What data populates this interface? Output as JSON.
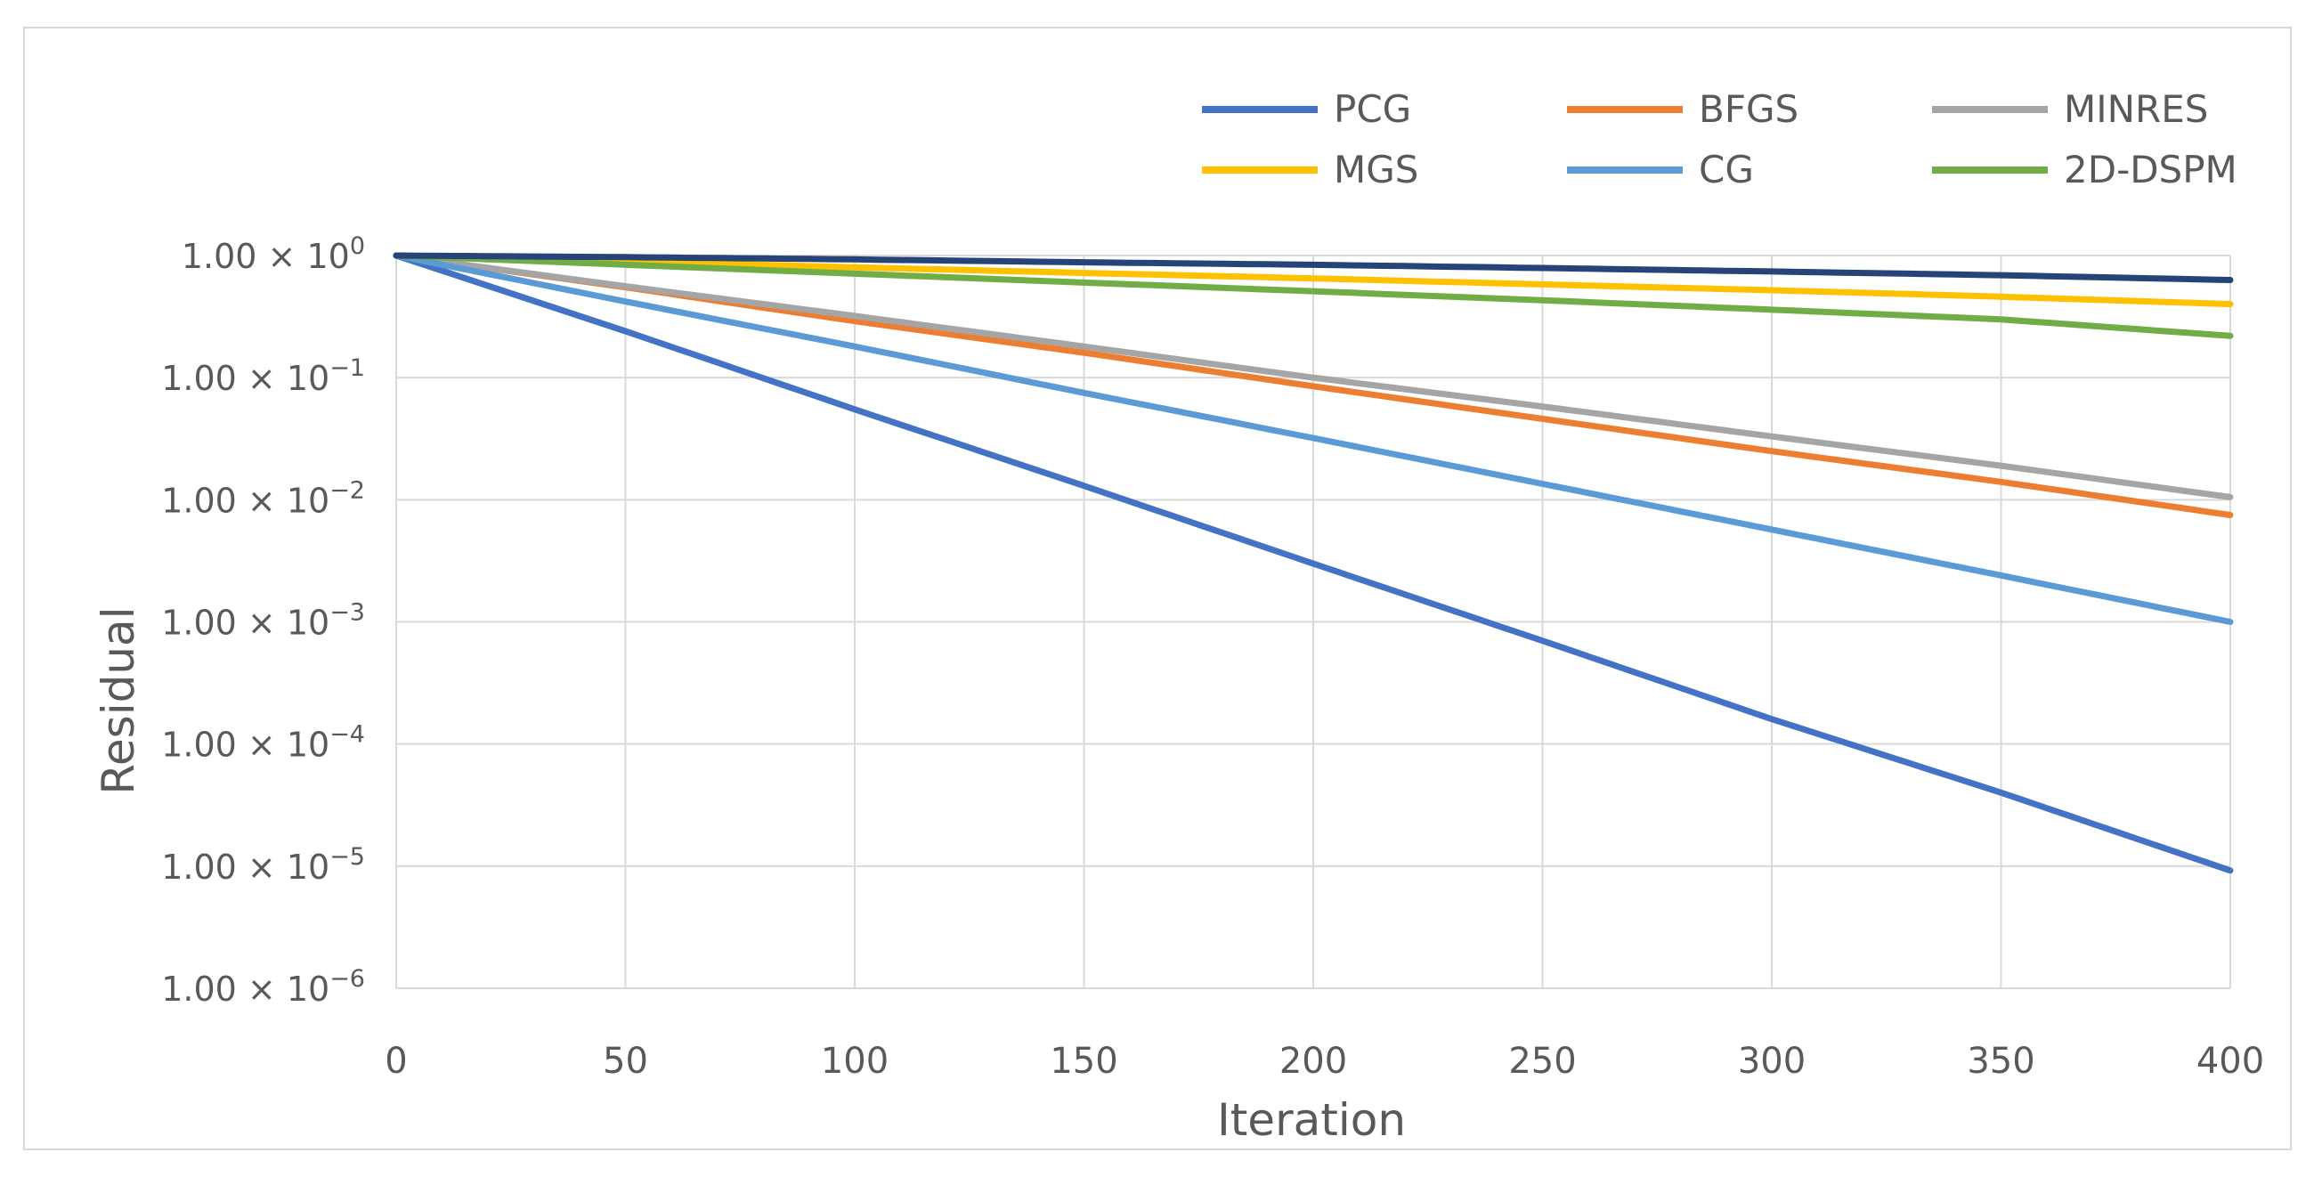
{
  "chart_data": {
    "type": "line",
    "title": "",
    "xlabel": "Iteration",
    "ylabel": "Residual",
    "xlim": [
      0,
      400
    ],
    "ylim": [
      1e-06,
      1
    ],
    "yscale": "log",
    "grid": true,
    "legend_position": "top",
    "x_ticks": [
      "0",
      "50",
      "100",
      "150",
      "200",
      "250",
      "300",
      "350",
      "400"
    ],
    "y_ticks": [
      {
        "mantissa": "1.00 × 10",
        "exponent": "0"
      },
      {
        "mantissa": "1.00 × 10",
        "exponent": "−1"
      },
      {
        "mantissa": "1.00 × 10",
        "exponent": "−2"
      },
      {
        "mantissa": "1.00 × 10",
        "exponent": "−3"
      },
      {
        "mantissa": "1.00 × 10",
        "exponent": "−4"
      },
      {
        "mantissa": "1.00 × 10",
        "exponent": "−5"
      },
      {
        "mantissa": "1.00 × 10",
        "exponent": "−6"
      }
    ],
    "series": [
      {
        "name": "PCG",
        "color": "#4472c4",
        "x": [
          0,
          50,
          100,
          150,
          200,
          250,
          300,
          350,
          400
        ],
        "values": [
          1,
          0.24,
          0.055,
          0.013,
          0.003,
          0.0007,
          0.00016,
          4e-05,
          9.2e-06
        ]
      },
      {
        "name": "BFGS",
        "color": "#ed7d31",
        "x": [
          0,
          50,
          100,
          150,
          200,
          250,
          300,
          350,
          400
        ],
        "values": [
          1,
          0.55,
          0.29,
          0.16,
          0.085,
          0.046,
          0.025,
          0.014,
          0.0075
        ]
      },
      {
        "name": "MINRES",
        "color": "#a5a5a5",
        "x": [
          0,
          50,
          100,
          150,
          200,
          250,
          300,
          350,
          400
        ],
        "values": [
          1,
          0.56,
          0.32,
          0.18,
          0.1,
          0.058,
          0.033,
          0.019,
          0.0105
        ]
      },
      {
        "name": "MGS",
        "color": "#ffc000",
        "x": [
          0,
          50,
          100,
          150,
          200,
          250,
          300,
          350,
          400
        ],
        "values": [
          1,
          0.9,
          0.8,
          0.72,
          0.65,
          0.58,
          0.52,
          0.46,
          0.4
        ]
      },
      {
        "name": "CG",
        "color": "#5b9bd5",
        "x": [
          0,
          50,
          100,
          150,
          200,
          250,
          300,
          350,
          400
        ],
        "values": [
          1,
          0.42,
          0.18,
          0.075,
          0.032,
          0.0135,
          0.0057,
          0.0024,
          0.001
        ]
      },
      {
        "name": "2D-DSPM",
        "color": "#70ad47",
        "x": [
          0,
          50,
          100,
          150,
          200,
          250,
          300,
          350,
          400
        ],
        "values": [
          1,
          0.84,
          0.71,
          0.6,
          0.51,
          0.43,
          0.36,
          0.3,
          0.22
        ]
      },
      {
        "name": "",
        "color": "#264478",
        "x": [
          0,
          50,
          100,
          150,
          200,
          250,
          300,
          350,
          400
        ],
        "values": [
          1,
          0.97,
          0.93,
          0.88,
          0.84,
          0.79,
          0.74,
          0.69,
          0.63
        ]
      }
    ]
  }
}
